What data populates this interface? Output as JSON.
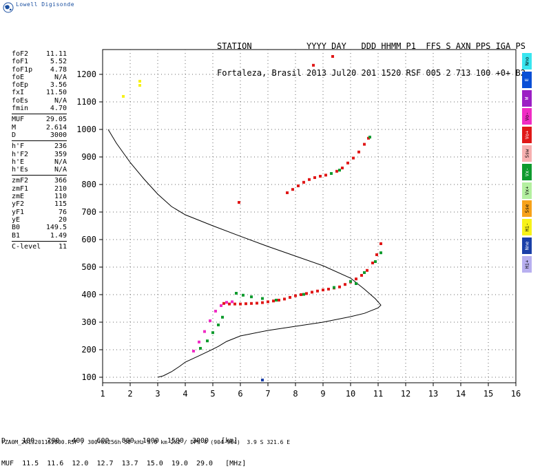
{
  "logo": {
    "icon": "globe-icon",
    "text": "Lowell Digisonde"
  },
  "header": {
    "labels_line": "STATION           YYYY DAY   DDD HHMM P1  FFS S AXN PPS IGA PS",
    "values_line": "Fortaleza, Brasil 2013 Jul20 201 1520 RSF 005 2 713 100 +0+ B2"
  },
  "params_groups": [
    [
      {
        "k": "foF2",
        "v": "11.11"
      },
      {
        "k": "foF1",
        "v": "5.52"
      },
      {
        "k": "foF1p",
        "v": "4.78"
      },
      {
        "k": "foE",
        "v": "N/A"
      },
      {
        "k": "foEp",
        "v": "3.56"
      },
      {
        "k": "fxI",
        "v": "11.50"
      },
      {
        "k": "foEs",
        "v": "N/A"
      },
      {
        "k": "fmin",
        "v": "4.70"
      }
    ],
    [
      {
        "k": "MUF",
        "v": "29.05"
      },
      {
        "k": "M",
        "v": "2.614"
      },
      {
        "k": "D",
        "v": "3000"
      }
    ],
    [
      {
        "k": "h'F",
        "v": "236"
      },
      {
        "k": "h'F2",
        "v": "359"
      },
      {
        "k": "h'E",
        "v": "N/A"
      },
      {
        "k": "h'Es",
        "v": "N/A"
      }
    ],
    [
      {
        "k": "zmF2",
        "v": "366"
      },
      {
        "k": "zmF1",
        "v": "210"
      },
      {
        "k": "zmE",
        "v": "110"
      },
      {
        "k": "yF2",
        "v": "115"
      },
      {
        "k": "yF1",
        "v": "76"
      },
      {
        "k": "yE",
        "v": "20"
      },
      {
        "k": "B0",
        "v": "149.5"
      },
      {
        "k": "B1",
        "v": "1.49"
      }
    ],
    [
      {
        "k": "C-level",
        "v": "11"
      }
    ]
  ],
  "legend": [
    {
      "label": "Nno",
      "color": "#39e6f0"
    },
    {
      "label": "E",
      "color": "#0a4fd6"
    },
    {
      "label": "W",
      "color": "#9c1fc4"
    },
    {
      "label": "Vo-",
      "color": "#f02cc4"
    },
    {
      "label": "Vo+",
      "color": "#e01818"
    },
    {
      "label": "Ssw",
      "color": "#f7b0b0"
    },
    {
      "label": "Vx-",
      "color": "#0e9b2e"
    },
    {
      "label": "Vx+",
      "color": "#b4f0a0"
    },
    {
      "label": "Sse",
      "color": "#f7a21a"
    },
    {
      "label": "Hi-",
      "color": "#f7f21a"
    },
    {
      "label": "Nne",
      "color": "#1a3fa8"
    },
    {
      "label": "Hi+",
      "color": "#b8b0f0"
    }
  ],
  "freq_table": {
    "row1": "D    100   200   400   600   800  1000  1500  3000   [km]",
    "row2": "MUF  11.5  11.6  12.0  12.7  13.7  15.0  19.0  29.0   [MHz]"
  },
  "footer": "FZA0M_2013201152000.RSF / 300+6x256h 50 kHz 5.0 km 2x2 / DPS-4 (904-904)  3.9 S 321.6 E",
  "chart_data": {
    "type": "scatter",
    "xlim": [
      1,
      16
    ],
    "ylim": [
      80,
      1290
    ],
    "xticks": [
      1,
      2,
      3,
      4,
      5,
      6,
      7,
      8,
      9,
      10,
      11,
      12,
      13,
      14,
      15,
      16
    ],
    "yticks": [
      100,
      200,
      300,
      400,
      500,
      600,
      700,
      800,
      900,
      1000,
      1100,
      1200
    ],
    "grid": true,
    "profile_curve": [
      [
        1.2,
        1000
      ],
      [
        1.5,
        950
      ],
      [
        2.0,
        880
      ],
      [
        2.5,
        820
      ],
      [
        3.0,
        765
      ],
      [
        3.5,
        720
      ],
      [
        4.0,
        690
      ],
      [
        5.0,
        650
      ],
      [
        6.0,
        612
      ],
      [
        7.0,
        575
      ],
      [
        8.0,
        540
      ],
      [
        9.0,
        505
      ],
      [
        10.0,
        460
      ],
      [
        10.5,
        420
      ],
      [
        10.9,
        385
      ],
      [
        11.1,
        362
      ],
      [
        11.0,
        352
      ],
      [
        10.5,
        332
      ],
      [
        10.0,
        320
      ],
      [
        9.0,
        300
      ],
      [
        8.0,
        285
      ],
      [
        7.0,
        270
      ],
      [
        6.0,
        250
      ],
      [
        5.5,
        230
      ],
      [
        5.2,
        212
      ],
      [
        4.9,
        197
      ],
      [
        4.5,
        178
      ],
      [
        4.0,
        155
      ],
      [
        3.8,
        140
      ],
      [
        3.5,
        120
      ],
      [
        3.2,
        105
      ],
      [
        3.0,
        100
      ]
    ],
    "series": [
      {
        "color": "#e01818",
        "points": [
          [
            5.4,
            368
          ],
          [
            5.6,
            366
          ],
          [
            5.8,
            366
          ],
          [
            6.0,
            366
          ],
          [
            6.2,
            367
          ],
          [
            6.4,
            368
          ],
          [
            6.6,
            369
          ],
          [
            6.8,
            371
          ],
          [
            7.0,
            374
          ],
          [
            7.2,
            377
          ],
          [
            7.4,
            380
          ],
          [
            7.6,
            384
          ],
          [
            7.8,
            390
          ],
          [
            8.0,
            396
          ],
          [
            8.2,
            400
          ],
          [
            8.4,
            404
          ],
          [
            8.6,
            409
          ],
          [
            8.8,
            413
          ],
          [
            9.0,
            417
          ],
          [
            9.2,
            420
          ],
          [
            9.4,
            424
          ],
          [
            9.6,
            428
          ],
          [
            9.8,
            437
          ],
          [
            10.0,
            446
          ],
          [
            10.2,
            457
          ],
          [
            10.4,
            470
          ],
          [
            10.6,
            488
          ],
          [
            10.8,
            515
          ],
          [
            10.95,
            545
          ],
          [
            11.1,
            585
          ]
        ]
      },
      {
        "color": "#e01818",
        "points": [
          [
            7.7,
            770
          ],
          [
            7.9,
            782
          ],
          [
            8.1,
            795
          ],
          [
            8.3,
            808
          ],
          [
            8.5,
            818
          ],
          [
            8.7,
            825
          ],
          [
            8.9,
            830
          ],
          [
            9.1,
            834
          ],
          [
            9.3,
            840
          ],
          [
            9.5,
            848
          ],
          [
            9.7,
            860
          ],
          [
            9.9,
            878
          ],
          [
            10.1,
            896
          ],
          [
            10.3,
            918
          ],
          [
            10.5,
            946
          ],
          [
            10.65,
            968
          ]
        ]
      },
      {
        "color": "#f02cc4",
        "points": [
          [
            4.3,
            195
          ],
          [
            4.5,
            228
          ],
          [
            4.7,
            266
          ],
          [
            4.9,
            305
          ],
          [
            5.1,
            340
          ],
          [
            5.3,
            360
          ],
          [
            5.5,
            372
          ],
          [
            5.7,
            374
          ]
        ]
      },
      {
        "color": "#0e9b2e",
        "points": [
          [
            4.55,
            205
          ],
          [
            4.8,
            232
          ],
          [
            5.0,
            262
          ],
          [
            5.2,
            290
          ],
          [
            5.35,
            318
          ],
          [
            5.85,
            405
          ],
          [
            6.1,
            398
          ],
          [
            6.4,
            392
          ],
          [
            6.8,
            386
          ],
          [
            7.3,
            380
          ],
          [
            8.3,
            401
          ],
          [
            9.4,
            426
          ],
          [
            10.0,
            448
          ],
          [
            10.2,
            440
          ],
          [
            10.5,
            480
          ],
          [
            10.9,
            520
          ],
          [
            11.1,
            552
          ],
          [
            9.3,
            840
          ],
          [
            9.6,
            852
          ],
          [
            10.7,
            972
          ]
        ]
      },
      {
        "color": "#e01818",
        "points": [
          [
            5.95,
            735
          ],
          [
            8.65,
            1233
          ],
          [
            9.35,
            1265
          ]
        ]
      },
      {
        "color": "#f7f21a",
        "points": [
          [
            1.75,
            1120
          ],
          [
            2.35,
            1160
          ],
          [
            2.35,
            1175
          ]
        ]
      },
      {
        "color": "#1a3fa8",
        "points": [
          [
            6.8,
            90
          ]
        ]
      }
    ]
  }
}
